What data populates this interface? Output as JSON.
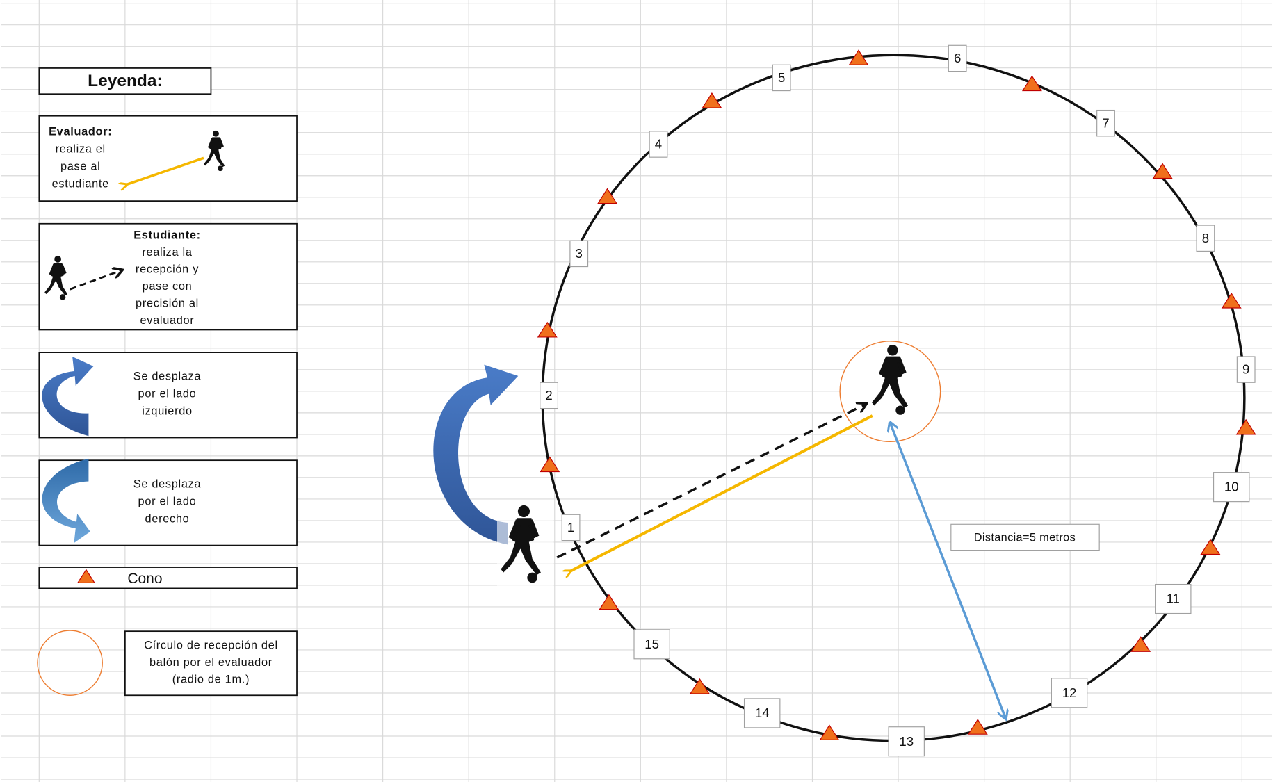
{
  "legend": {
    "title": "Leyenda:",
    "evaluator": [
      "Evaluador:",
      "realiza el",
      "pase al",
      "estudiante"
    ],
    "student": [
      "Estudiante:",
      "realiza la",
      "recepción y",
      "pase con",
      "precisión al",
      "evaluador"
    ],
    "left": [
      "Se desplaza",
      "por el lado",
      "izquierdo"
    ],
    "right": [
      "Se desplaza",
      "por el lado",
      "derecho"
    ],
    "cone": "Cono",
    "circle": [
      "Círculo de recepción del",
      "balón por el evaluador",
      "(radio de 1m.)"
    ]
  },
  "field": {
    "stations": [
      1,
      2,
      3,
      4,
      5,
      6,
      7,
      8,
      9,
      10,
      11,
      12,
      13,
      14,
      15
    ],
    "distance": "Distancia=5 metros"
  }
}
